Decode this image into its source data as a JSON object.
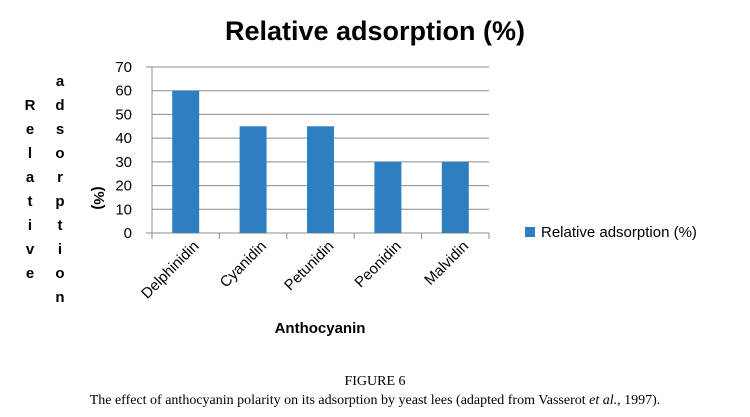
{
  "chart_data": {
    "type": "bar",
    "title": "Relative adsorption (%)",
    "categories": [
      "Delphinidin",
      "Cyanidin",
      "Petunidin",
      "Peonidin",
      "Malvidin"
    ],
    "series": [
      {
        "name": "Relative adsorption (%)",
        "values": [
          60,
          45,
          45,
          30,
          30
        ]
      }
    ],
    "xlabel": "Anthocyanin",
    "ylabel_col1": "Relative",
    "ylabel_col2": "adsorption",
    "ylabel_col3": "(%)",
    "ylim": [
      0,
      70
    ],
    "yticks": [
      0,
      10,
      20,
      30,
      40,
      50,
      60,
      70
    ],
    "grid": true,
    "legend": "right",
    "bar_color": "#2e7fc2"
  },
  "figure": {
    "label": "FIGURE 6",
    "caption": "The effect of anthocyanin polarity on its adsorption by yeast lees (adapted from Vasserot et al., 1997)."
  }
}
